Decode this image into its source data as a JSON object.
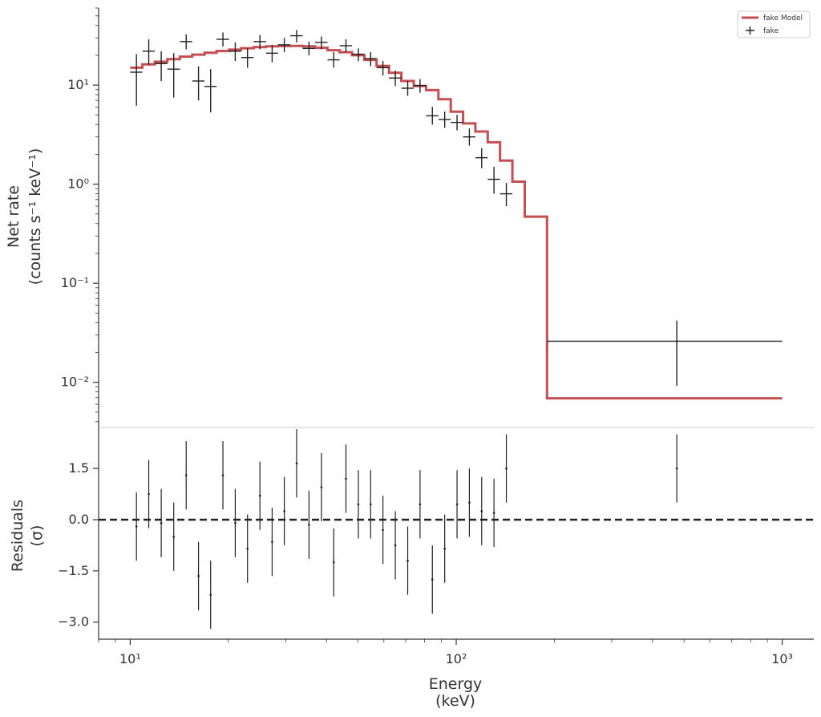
{
  "chart_data": [
    {
      "panel": "spectrum",
      "type": "scatter",
      "xlabel": "",
      "ylabel_line1": "Net rate",
      "ylabel_line2": "(counts s⁻¹ keV⁻¹)",
      "xscale": "log",
      "yscale": "log",
      "xlim": [
        8,
        1250
      ],
      "ylim": [
        0.0035,
        60
      ],
      "yticks": [
        {
          "value": 10,
          "label": "10¹"
        },
        {
          "value": 1,
          "label": "10⁰"
        },
        {
          "value": 0.1,
          "label": "10⁻¹"
        },
        {
          "value": 0.01,
          "label": "10⁻²"
        }
      ],
      "legend": {
        "position": "top-right",
        "entries": [
          {
            "label": "fake Model",
            "marker": "line",
            "color": "#c44e52"
          },
          {
            "label": "fake",
            "marker": "cross",
            "color": "#222222"
          }
        ]
      },
      "series": [
        {
          "name": "fake Model",
          "kind": "step",
          "color": "#c44e52",
          "bins": [
            [
              10.0,
              10.9,
              15.0
            ],
            [
              10.9,
              11.9,
              16.2
            ],
            [
              11.9,
              13.0,
              17.2
            ],
            [
              13.0,
              14.2,
              18.3
            ],
            [
              14.2,
              15.5,
              19.4
            ],
            [
              15.5,
              16.9,
              20.3
            ],
            [
              16.9,
              18.4,
              21.2
            ],
            [
              18.4,
              20.1,
              22.1
            ],
            [
              20.1,
              21.9,
              22.8
            ],
            [
              21.9,
              23.9,
              23.6
            ],
            [
              23.9,
              26.1,
              24.2
            ],
            [
              26.1,
              28.4,
              24.6
            ],
            [
              28.4,
              31.0,
              24.8
            ],
            [
              31.0,
              33.8,
              24.9
            ],
            [
              33.8,
              36.9,
              24.6
            ],
            [
              36.9,
              40.3,
              23.8
            ],
            [
              40.3,
              43.9,
              22.5
            ],
            [
              43.9,
              47.9,
              21.5
            ],
            [
              47.9,
              52.3,
              20.0
            ],
            [
              52.3,
              57.0,
              18.0
            ],
            [
              57.0,
              62.2,
              15.6
            ],
            [
              62.2,
              67.9,
              13.3
            ],
            [
              67.9,
              74.1,
              11.0
            ],
            [
              74.1,
              80.8,
              9.8
            ],
            [
              80.8,
              88.2,
              8.9
            ],
            [
              88.2,
              96.2,
              7.2
            ],
            [
              96.2,
              105.0,
              5.4
            ],
            [
              105.0,
              114.5,
              4.1
            ],
            [
              114.5,
              124.9,
              3.4
            ],
            [
              124.9,
              136.3,
              2.65
            ],
            [
              136.3,
              148.7,
              1.73
            ],
            [
              148.7,
              162.3,
              1.06
            ],
            [
              162.3,
              190.0,
              0.47
            ],
            [
              190.0,
              1000.0,
              0.0069
            ]
          ]
        },
        {
          "name": "fake",
          "kind": "errorbar",
          "color": "#222222",
          "points": [
            {
              "x": 10.45,
              "xlo": 10.0,
              "xhi": 10.9,
              "y": 13.5,
              "ylo": 6.2,
              "yhi": 20.5
            },
            {
              "x": 11.4,
              "xlo": 10.9,
              "xhi": 11.9,
              "y": 22.0,
              "ylo": 16.0,
              "yhi": 29.0
            },
            {
              "x": 12.45,
              "xlo": 11.9,
              "xhi": 13.0,
              "y": 16.5,
              "ylo": 11.0,
              "yhi": 22.0
            },
            {
              "x": 13.6,
              "xlo": 13.0,
              "xhi": 14.2,
              "y": 14.5,
              "ylo": 7.5,
              "yhi": 21.0
            },
            {
              "x": 14.85,
              "xlo": 14.2,
              "xhi": 15.5,
              "y": 27.5,
              "ylo": 23.0,
              "yhi": 32.5
            },
            {
              "x": 16.2,
              "xlo": 15.5,
              "xhi": 16.9,
              "y": 11.0,
              "ylo": 7.0,
              "yhi": 15.5
            },
            {
              "x": 17.65,
              "xlo": 16.9,
              "xhi": 18.4,
              "y": 9.7,
              "ylo": 5.3,
              "yhi": 14.5
            },
            {
              "x": 19.25,
              "xlo": 18.4,
              "xhi": 20.1,
              "y": 29.0,
              "ylo": 24.5,
              "yhi": 34.0
            },
            {
              "x": 21.0,
              "xlo": 20.1,
              "xhi": 21.9,
              "y": 22.0,
              "ylo": 17.5,
              "yhi": 27.0
            },
            {
              "x": 22.9,
              "xlo": 21.9,
              "xhi": 23.9,
              "y": 19.0,
              "ylo": 15.0,
              "yhi": 23.5
            },
            {
              "x": 25.0,
              "xlo": 23.9,
              "xhi": 26.1,
              "y": 27.5,
              "ylo": 23.0,
              "yhi": 32.0
            },
            {
              "x": 27.25,
              "xlo": 26.1,
              "xhi": 28.4,
              "y": 21.0,
              "ylo": 17.0,
              "yhi": 25.5
            },
            {
              "x": 29.7,
              "xlo": 28.4,
              "xhi": 31.0,
              "y": 25.5,
              "ylo": 21.5,
              "yhi": 30.0
            },
            {
              "x": 32.4,
              "xlo": 31.0,
              "xhi": 33.8,
              "y": 31.5,
              "ylo": 27.0,
              "yhi": 36.0
            },
            {
              "x": 35.35,
              "xlo": 33.8,
              "xhi": 36.9,
              "y": 23.5,
              "ylo": 20.0,
              "yhi": 27.5
            },
            {
              "x": 38.6,
              "xlo": 36.9,
              "xhi": 40.3,
              "y": 27.0,
              "ylo": 23.0,
              "yhi": 31.0
            },
            {
              "x": 42.1,
              "xlo": 40.3,
              "xhi": 43.9,
              "y": 18.0,
              "ylo": 15.0,
              "yhi": 21.5
            },
            {
              "x": 45.9,
              "xlo": 43.9,
              "xhi": 47.9,
              "y": 25.0,
              "ylo": 21.5,
              "yhi": 29.0
            },
            {
              "x": 50.1,
              "xlo": 47.9,
              "xhi": 52.3,
              "y": 20.5,
              "ylo": 17.5,
              "yhi": 23.5
            },
            {
              "x": 54.65,
              "xlo": 52.3,
              "xhi": 57.0,
              "y": 18.5,
              "ylo": 15.5,
              "yhi": 21.5
            },
            {
              "x": 59.6,
              "xlo": 57.0,
              "xhi": 62.2,
              "y": 15.0,
              "ylo": 12.5,
              "yhi": 17.5
            },
            {
              "x": 65.05,
              "xlo": 62.2,
              "xhi": 67.9,
              "y": 11.8,
              "ylo": 9.8,
              "yhi": 14.0
            },
            {
              "x": 71.0,
              "xlo": 67.9,
              "xhi": 74.1,
              "y": 9.3,
              "ylo": 7.8,
              "yhi": 11.0
            },
            {
              "x": 77.45,
              "xlo": 74.1,
              "xhi": 80.8,
              "y": 9.9,
              "ylo": 8.4,
              "yhi": 11.5
            },
            {
              "x": 84.5,
              "xlo": 80.8,
              "xhi": 88.2,
              "y": 4.9,
              "ylo": 4.0,
              "yhi": 6.0
            },
            {
              "x": 92.2,
              "xlo": 88.2,
              "xhi": 96.2,
              "y": 4.5,
              "ylo": 3.7,
              "yhi": 5.4
            },
            {
              "x": 100.6,
              "xlo": 96.2,
              "xhi": 105.0,
              "y": 4.2,
              "ylo": 3.5,
              "yhi": 5.0
            },
            {
              "x": 109.75,
              "xlo": 105.0,
              "xhi": 114.5,
              "y": 3.0,
              "ylo": 2.45,
              "yhi": 3.65
            },
            {
              "x": 119.7,
              "xlo": 114.5,
              "xhi": 124.9,
              "y": 1.85,
              "ylo": 1.45,
              "yhi": 2.3
            },
            {
              "x": 130.6,
              "xlo": 124.9,
              "xhi": 136.3,
              "y": 1.12,
              "ylo": 0.8,
              "yhi": 1.5
            },
            {
              "x": 142.5,
              "xlo": 136.3,
              "xhi": 148.7,
              "y": 0.8,
              "ylo": 0.6,
              "yhi": 1.03
            },
            {
              "x": 475.0,
              "xlo": 190.0,
              "xhi": 1000.0,
              "y": 0.026,
              "ylo": 0.0092,
              "yhi": 0.042
            }
          ]
        }
      ]
    },
    {
      "panel": "residuals",
      "type": "scatter",
      "xlabel_line1": "Energy",
      "xlabel_line2": "(keV)",
      "ylabel_line1": "Residuals",
      "ylabel_line2": "(σ)",
      "xscale": "log",
      "yscale": "linear",
      "xlim": [
        8,
        1250
      ],
      "ylim": [
        -3.5,
        2.7
      ],
      "xticks": [
        {
          "value": 10,
          "label": "10¹"
        },
        {
          "value": 100,
          "label": "10²"
        },
        {
          "value": 1000,
          "label": "10³"
        }
      ],
      "yticks": [
        {
          "value": 1.5,
          "label": "1.5"
        },
        {
          "value": 0.0,
          "label": "0.0"
        },
        {
          "value": -1.5,
          "label": "−1.5"
        },
        {
          "value": -3.0,
          "label": "−3.0"
        }
      ],
      "reference_line": {
        "y": 0.0,
        "style": "dashed",
        "color": "#222222"
      },
      "series": [
        {
          "name": "fake",
          "kind": "errorbar",
          "color": "#222222",
          "points": [
            {
              "x": 10.45,
              "y": -0.2,
              "ylo": -1.2,
              "yhi": 0.8
            },
            {
              "x": 11.4,
              "y": 0.75,
              "ylo": -0.25,
              "yhi": 1.75
            },
            {
              "x": 12.45,
              "y": -0.1,
              "ylo": -1.1,
              "yhi": 0.9
            },
            {
              "x": 13.6,
              "y": -0.5,
              "ylo": -1.5,
              "yhi": 0.5
            },
            {
              "x": 14.85,
              "y": 1.3,
              "ylo": 0.3,
              "yhi": 2.3
            },
            {
              "x": 16.2,
              "y": -1.65,
              "ylo": -2.65,
              "yhi": -0.65
            },
            {
              "x": 17.65,
              "y": -2.2,
              "ylo": -3.2,
              "yhi": -1.2
            },
            {
              "x": 19.25,
              "y": 1.3,
              "ylo": 0.3,
              "yhi": 2.3
            },
            {
              "x": 21.0,
              "y": -0.1,
              "ylo": -1.1,
              "yhi": 0.9
            },
            {
              "x": 22.9,
              "y": -0.85,
              "ylo": -1.85,
              "yhi": 0.15
            },
            {
              "x": 25.0,
              "y": 0.7,
              "ylo": -0.3,
              "yhi": 1.7
            },
            {
              "x": 27.25,
              "y": -0.65,
              "ylo": -1.65,
              "yhi": 0.35
            },
            {
              "x": 29.7,
              "y": 0.25,
              "ylo": -0.75,
              "yhi": 1.25
            },
            {
              "x": 32.4,
              "y": 1.65,
              "ylo": 0.65,
              "yhi": 2.65
            },
            {
              "x": 35.35,
              "y": -0.15,
              "ylo": -1.15,
              "yhi": 0.85
            },
            {
              "x": 38.6,
              "y": 0.95,
              "ylo": -0.05,
              "yhi": 1.95
            },
            {
              "x": 42.1,
              "y": -1.25,
              "ylo": -2.25,
              "yhi": -0.25
            },
            {
              "x": 45.9,
              "y": 1.2,
              "ylo": 0.2,
              "yhi": 2.2
            },
            {
              "x": 50.1,
              "y": 0.45,
              "ylo": -0.55,
              "yhi": 1.45
            },
            {
              "x": 54.65,
              "y": 0.45,
              "ylo": -0.55,
              "yhi": 1.45
            },
            {
              "x": 59.6,
              "y": -0.3,
              "ylo": -1.3,
              "yhi": 0.7
            },
            {
              "x": 65.05,
              "y": -0.75,
              "ylo": -1.75,
              "yhi": 0.25
            },
            {
              "x": 71.0,
              "y": -1.2,
              "ylo": -2.2,
              "yhi": -0.2
            },
            {
              "x": 77.45,
              "y": 0.45,
              "ylo": -0.55,
              "yhi": 1.45
            },
            {
              "x": 84.5,
              "y": -1.75,
              "ylo": -2.75,
              "yhi": -0.75
            },
            {
              "x": 92.2,
              "y": -0.85,
              "ylo": -1.85,
              "yhi": 0.15
            },
            {
              "x": 100.6,
              "y": 0.45,
              "ylo": -0.55,
              "yhi": 1.45
            },
            {
              "x": 109.75,
              "y": 0.5,
              "ylo": -0.5,
              "yhi": 1.5
            },
            {
              "x": 119.7,
              "y": 0.25,
              "ylo": -0.75,
              "yhi": 1.25
            },
            {
              "x": 130.6,
              "y": 0.2,
              "ylo": -0.8,
              "yhi": 1.2
            },
            {
              "x": 142.5,
              "y": 1.5,
              "ylo": 0.5,
              "yhi": 2.5
            },
            {
              "x": 475.0,
              "y": 1.5,
              "ylo": 0.5,
              "yhi": 2.5
            }
          ]
        }
      ]
    }
  ]
}
